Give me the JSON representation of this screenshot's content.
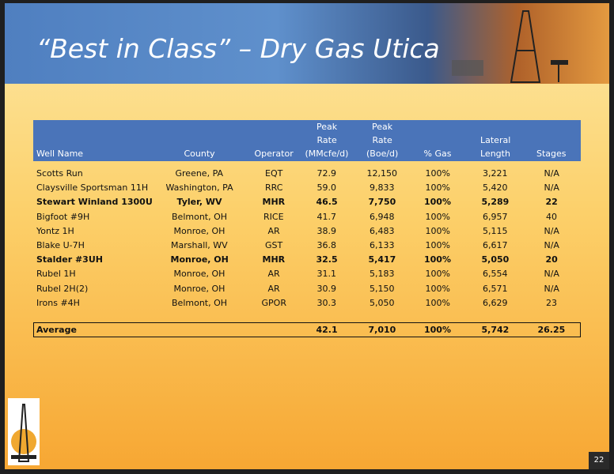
{
  "header": {
    "title": "“Best in Class” – Dry Gas Utica"
  },
  "table": {
    "columns": [
      [
        "Well Name"
      ],
      [
        "County"
      ],
      [
        "Operator"
      ],
      [
        "Peak",
        "Rate",
        "(MMcfe/d)"
      ],
      [
        "Peak",
        "Rate",
        "(Boe/d)"
      ],
      [
        "% Gas"
      ],
      [
        "Lateral",
        "Length"
      ],
      [
        "Stages"
      ]
    ],
    "rows": [
      {
        "cells": [
          "Scotts Run",
          "Greene, PA",
          "EQT",
          "72.9",
          "12,150",
          "100%",
          "3,221",
          "N/A"
        ],
        "bold": false
      },
      {
        "cells": [
          "Claysville Sportsman 11H",
          "Washington, PA",
          "RRC",
          "59.0",
          "9,833",
          "100%",
          "5,420",
          "N/A"
        ],
        "bold": false
      },
      {
        "cells": [
          "Stewart Winland 1300U",
          "Tyler, WV",
          "MHR",
          "46.5",
          "7,750",
          "100%",
          "5,289",
          "22"
        ],
        "bold": true
      },
      {
        "cells": [
          "Bigfoot #9H",
          "Belmont, OH",
          "RICE",
          "41.7",
          "6,948",
          "100%",
          "6,957",
          "40"
        ],
        "bold": false
      },
      {
        "cells": [
          "Yontz 1H",
          "Monroe, OH",
          "AR",
          "38.9",
          "6,483",
          "100%",
          "5,115",
          "N/A"
        ],
        "bold": false
      },
      {
        "cells": [
          "Blake U-7H",
          "Marshall, WV",
          "GST",
          "36.8",
          "6,133",
          "100%",
          "6,617",
          "N/A"
        ],
        "bold": false
      },
      {
        "cells": [
          "Stalder #3UH",
          "Monroe, OH",
          "MHR",
          "32.5",
          "5,417",
          "100%",
          "5,050",
          "20"
        ],
        "bold": true
      },
      {
        "cells": [
          "Rubel 1H",
          "Monroe, OH",
          "AR",
          "31.1",
          "5,183",
          "100%",
          "6,554",
          "N/A"
        ],
        "bold": false
      },
      {
        "cells": [
          "Rubel 2H(2)",
          "Monroe, OH",
          "AR",
          "30.9",
          "5,150",
          "100%",
          "6,571",
          "N/A"
        ],
        "bold": false
      },
      {
        "cells": [
          "Irons #4H",
          "Belmont, OH",
          "GPOR",
          "30.3",
          "5,050",
          "100%",
          "6,629",
          "23"
        ],
        "bold": false
      }
    ],
    "average": {
      "label": "Average",
      "cells": [
        "42.1",
        "7,010",
        "100%",
        "5,742",
        "26.25"
      ]
    }
  },
  "footer": {
    "page": "22"
  }
}
